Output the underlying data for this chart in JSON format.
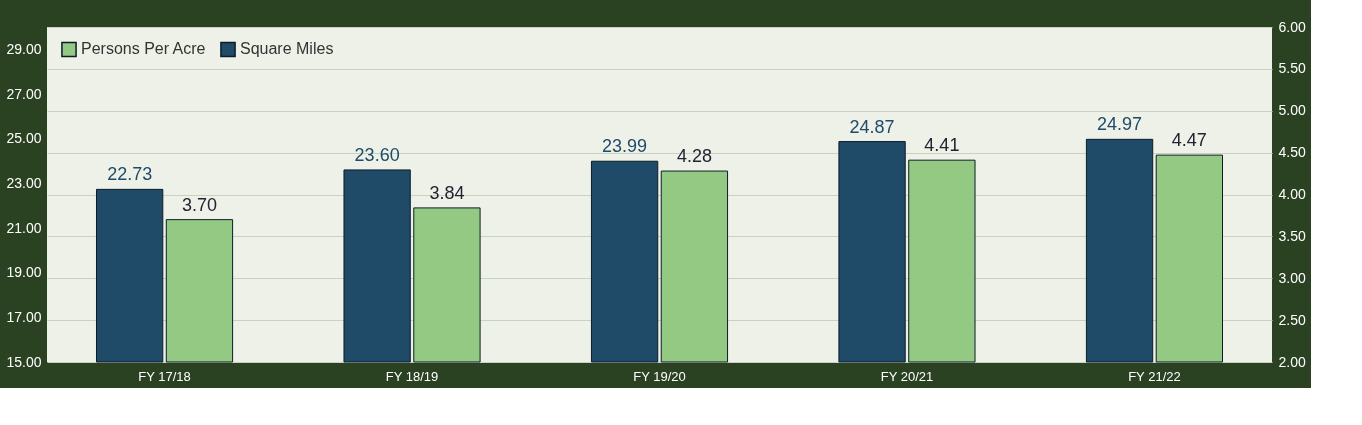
{
  "chart_data": {
    "type": "bar",
    "categories": [
      "FY 17/18",
      "FY 18/19",
      "FY 19/20",
      "FY 20/21",
      "FY 21/22"
    ],
    "series": [
      {
        "name": "Square Miles",
        "color": "#1f4a68",
        "values": [
          22.73,
          23.6,
          23.99,
          24.87,
          24.97
        ],
        "value_labels": [
          "22.73",
          "23.60",
          "23.99",
          "24.87",
          "24.97"
        ]
      },
      {
        "name": "Persons Per Acre",
        "color": "#93c983",
        "axis": "y2",
        "values": [
          3.7,
          3.84,
          4.28,
          4.41,
          4.47
        ],
        "value_labels": [
          "3.70",
          "3.84",
          "4.28",
          "4.41",
          "4.47"
        ]
      }
    ],
    "ylim": [
      15,
      30
    ],
    "yticks": [
      {
        "value": 15,
        "label": "15.00"
      },
      {
        "value": 17,
        "label": "17.00"
      },
      {
        "value": 19,
        "label": "19.00"
      },
      {
        "value": 21,
        "label": "21.00"
      },
      {
        "value": 23,
        "label": "23.00"
      },
      {
        "value": 25,
        "label": "25.00"
      },
      {
        "value": 27,
        "label": "27.00"
      },
      {
        "value": 29,
        "label": "29.00"
      }
    ],
    "y2lim": [
      2,
      6
    ],
    "y2ticks": [
      {
        "value": 2,
        "label": "2.00"
      },
      {
        "value": 2.5,
        "label": "2.50"
      },
      {
        "value": 3,
        "label": "3.00"
      },
      {
        "value": 3.5,
        "label": "3.50"
      },
      {
        "value": 4,
        "label": "4.00"
      },
      {
        "value": 4.5,
        "label": "4.50"
      },
      {
        "value": 5,
        "label": "5.00"
      },
      {
        "value": 5.5,
        "label": "5.50"
      },
      {
        "value": 6,
        "label": "6.00"
      }
    ],
    "grid": "y2",
    "legend": "top left"
  }
}
